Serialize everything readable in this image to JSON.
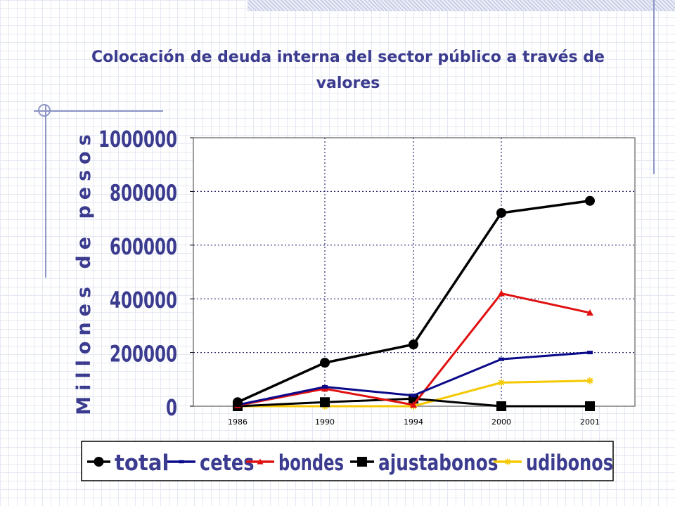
{
  "colors": {
    "title": "#3b3b8f",
    "axis_text": "#3b3b8f",
    "decor": "#8d96c4",
    "total": "#000000",
    "cetes": "#0a0a8a",
    "bondes": "#e01010",
    "ajustabonos": "#000000",
    "udibonos": "#f5c800"
  },
  "chart_data": {
    "type": "line",
    "title": "Colocación de deuda interna del sector público a través de valores",
    "title_lines": [
      "Colocación de deuda interna del sector público a través de",
      "valores"
    ],
    "xlabel": "",
    "ylabel": "Millones de pesos",
    "categories": [
      "1986",
      "1990",
      "1994",
      "2000",
      "2001"
    ],
    "ylim": [
      0,
      1000000
    ],
    "yticks": [
      "0",
      "200000",
      "400000",
      "600000",
      "800000",
      "1000000"
    ],
    "grid": true,
    "legend_position": "bottom",
    "series": [
      {
        "name": "total",
        "key": "total",
        "marker": "circle",
        "values": [
          15000,
          162000,
          230000,
          720000,
          765000
        ]
      },
      {
        "name": "cetes",
        "key": "cetes",
        "marker": "dash",
        "values": [
          5000,
          72000,
          40000,
          175000,
          200000
        ]
      },
      {
        "name": "bondes",
        "key": "bondes",
        "marker": "triangle",
        "values": [
          3000,
          65000,
          5000,
          420000,
          348000
        ]
      },
      {
        "name": "ajustabonos",
        "key": "ajustabonos",
        "marker": "square",
        "values": [
          0,
          15000,
          28000,
          0,
          0
        ]
      },
      {
        "name": "udibonos",
        "key": "udibonos",
        "marker": "star",
        "values": [
          0,
          0,
          0,
          88000,
          95000
        ]
      }
    ]
  }
}
